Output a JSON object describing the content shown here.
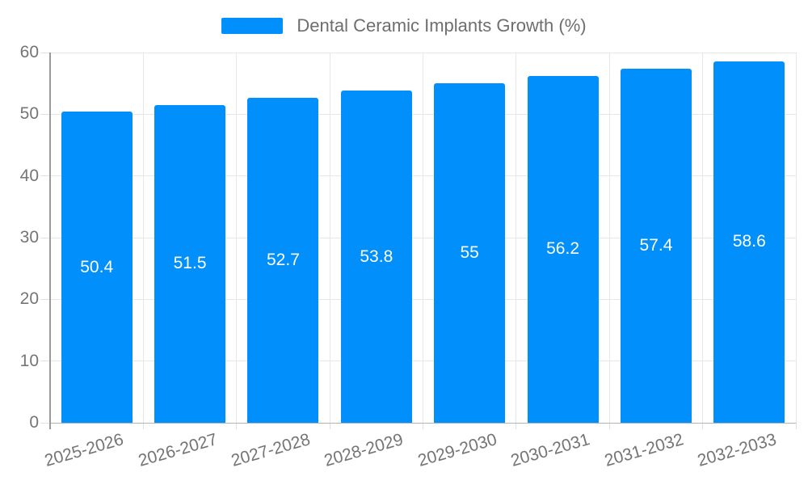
{
  "chart_data": {
    "type": "bar",
    "title": "Dental Ceramic Implants Growth (%)",
    "xlabel": "",
    "ylabel": "",
    "categories": [
      "2025-2026",
      "2026-2027",
      "2027-2028",
      "2028-2029",
      "2029-2030",
      "2030-2031",
      "2031-2032",
      "2032-2033"
    ],
    "series": [
      {
        "name": "Dental Ceramic Implants Growth (%)",
        "values": [
          50.4,
          51.5,
          52.7,
          53.8,
          55,
          56.2,
          57.4,
          58.6
        ],
        "value_labels": [
          "50.4",
          "51.5",
          "52.7",
          "53.8",
          "55",
          "56.2",
          "57.4",
          "58.6"
        ]
      }
    ],
    "ylim": [
      0,
      60
    ],
    "yticks": [
      0,
      10,
      20,
      30,
      40,
      50,
      60
    ],
    "ytick_labels": [
      "0",
      "10",
      "20",
      "30",
      "40",
      "50",
      "60"
    ],
    "grid": true,
    "legend_position": "top",
    "colors": {
      "bar": "#008FFB",
      "data_label": "#ffffff",
      "legend_text": "#6e6e6e",
      "axis_tick_text": "#757575",
      "gridline": "#e7e7e7",
      "tick": "#e0e0e0",
      "x_axis_line": "#b3b3b3",
      "y_axis_line": "#9a9a9a",
      "background": "#ffffff"
    }
  }
}
